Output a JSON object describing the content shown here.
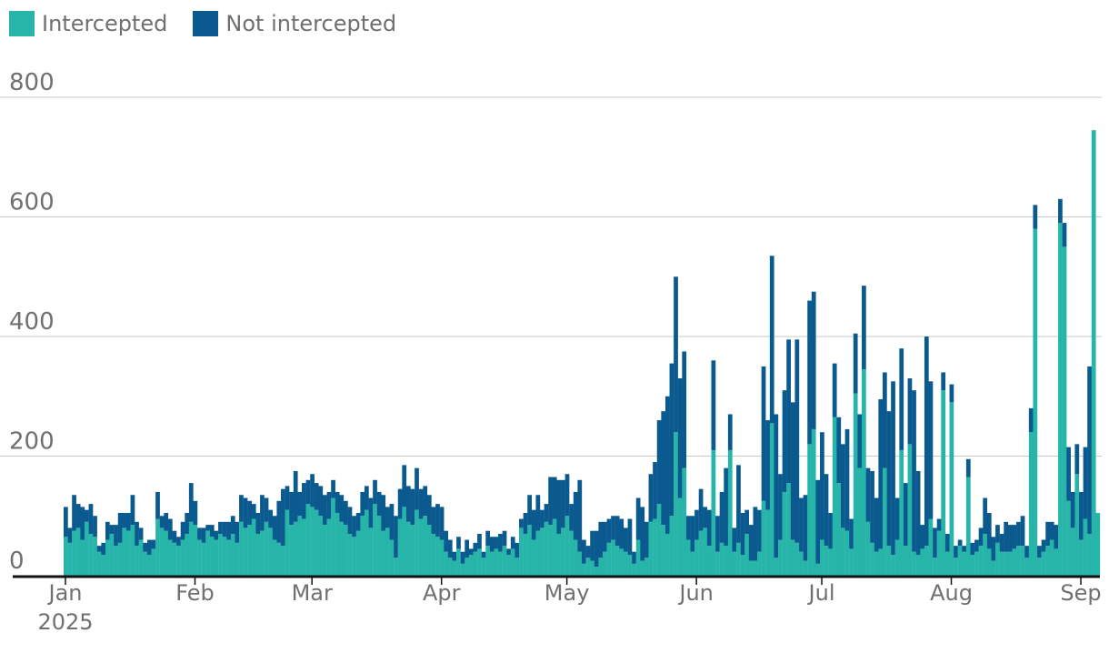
{
  "legend": {
    "intercepted_label": "Intercepted",
    "not_intercepted_label": "Not intercepted"
  },
  "colors": {
    "intercepted": "#26b5a8",
    "not_intercepted": "#0b5a8f",
    "grid": "#c8c8c8",
    "axis": "#121212",
    "text": "#707070"
  },
  "chart_data": {
    "type": "bar",
    "stacked": true,
    "grid": true,
    "legend_position": "top-left",
    "x_start_label": "Jan 1, 2025",
    "y_ticks": [
      "0",
      "200",
      "400",
      "600",
      "800"
    ],
    "ylim": [
      0,
      830
    ],
    "x_ticks": [
      {
        "label": "Jan",
        "sub": "2025",
        "day": 0
      },
      {
        "label": "Feb",
        "sub": "",
        "day": 31
      },
      {
        "label": "Mar",
        "sub": "",
        "day": 59
      },
      {
        "label": "Apr",
        "sub": "",
        "day": 90
      },
      {
        "label": "May",
        "sub": "",
        "day": 120
      },
      {
        "label": "Jun",
        "sub": "",
        "day": 151
      },
      {
        "label": "Jul",
        "sub": "",
        "day": 181
      },
      {
        "label": "Aug",
        "sub": "",
        "day": 212
      },
      {
        "label": "Sep",
        "sub": "",
        "day": 243
      }
    ],
    "series": [
      {
        "name": "Intercepted",
        "values": [
          65,
          55,
          75,
          80,
          60,
          90,
          70,
          65,
          40,
          35,
          60,
          70,
          50,
          55,
          80,
          75,
          85,
          50,
          60,
          40,
          35,
          45,
          95,
          80,
          75,
          60,
          55,
          50,
          60,
          70,
          90,
          85,
          60,
          55,
          75,
          65,
          60,
          70,
          65,
          60,
          70,
          55,
          90,
          80,
          85,
          95,
          70,
          75,
          90,
          80,
          60,
          55,
          50,
          110,
          85,
          90,
          100,
          95,
          120,
          115,
          110,
          100,
          85,
          95,
          130,
          105,
          90,
          85,
          70,
          65,
          75,
          100,
          110,
          80,
          120,
          100,
          75,
          80,
          60,
          30,
          95,
          115,
          90,
          85,
          110,
          95,
          100,
          85,
          70,
          65,
          60,
          40,
          30,
          25,
          45,
          20,
          30,
          35,
          40,
          45,
          30,
          50,
          40,
          45,
          40,
          50,
          35,
          45,
          30,
          80,
          70,
          85,
          60,
          75,
          80,
          90,
          85,
          95,
          70,
          80,
          100,
          75,
          60,
          40,
          20,
          30,
          25,
          15,
          30,
          40,
          55,
          60,
          50,
          45,
          40,
          35,
          20,
          60,
          25,
          30,
          90,
          95,
          120,
          85,
          70,
          100,
          240,
          130,
          180,
          60,
          40,
          60,
          75,
          80,
          50,
          210,
          40,
          55,
          50,
          210,
          40,
          55,
          35,
          70,
          25,
          25,
          40,
          125,
          110,
          255,
          30,
          60,
          140,
          155,
          60,
          55,
          40,
          25,
          220,
          245,
          20,
          60,
          50,
          45,
          265,
          155,
          80,
          75,
          45,
          305,
          180,
          345,
          90,
          55,
          40,
          45,
          180,
          50,
          35,
          60,
          210,
          50,
          220,
          40,
          35,
          45,
          50,
          95,
          30,
          75,
          310,
          40,
          290,
          30,
          50,
          40,
          165,
          35,
          40,
          50,
          70,
          45,
          25,
          55,
          40,
          40,
          40,
          45,
          50,
          50,
          30,
          240,
          580,
          30,
          40,
          50,
          60,
          45,
          590,
          550,
          125,
          80,
          170,
          60,
          95,
          70,
          745,
          105
        ]
      },
      {
        "name": "Not intercepted",
        "values": [
          50,
          25,
          60,
          40,
          55,
          20,
          50,
          35,
          10,
          20,
          30,
          15,
          35,
          50,
          25,
          30,
          50,
          40,
          20,
          15,
          25,
          15,
          45,
          20,
          30,
          35,
          20,
          15,
          30,
          35,
          65,
          40,
          20,
          25,
          10,
          20,
          15,
          20,
          25,
          30,
          30,
          35,
          45,
          50,
          40,
          25,
          35,
          60,
          40,
          30,
          40,
          70,
          95,
          40,
          55,
          85,
          40,
          60,
          40,
          55,
          45,
          50,
          50,
          45,
          30,
          35,
          45,
          40,
          45,
          35,
          30,
          40,
          40,
          50,
          40,
          40,
          60,
          35,
          60,
          70,
          50,
          70,
          60,
          60,
          70,
          50,
          50,
          50,
          45,
          55,
          55,
          35,
          30,
          15,
          20,
          20,
          30,
          10,
          15,
          25,
          10,
          25,
          25,
          20,
          30,
          25,
          10,
          20,
          25,
          15,
          35,
          50,
          50,
          60,
          30,
          30,
          80,
          70,
          90,
          80,
          70,
          45,
          80,
          120,
          40,
          20,
          50,
          60,
          60,
          50,
          40,
          40,
          50,
          50,
          40,
          60,
          20,
          70,
          90,
          60,
          80,
          95,
          140,
          190,
          230,
          255,
          260,
          200,
          195,
          40,
          60,
          50,
          70,
          35,
          60,
          150,
          60,
          85,
          130,
          60,
          40,
          130,
          70,
          40,
          60,
          90,
          70,
          225,
          150,
          280,
          240,
          110,
          170,
          240,
          230,
          340,
          90,
          110,
          240,
          230,
          140,
          180,
          120,
          60,
          90,
          110,
          140,
          170,
          50,
          100,
          90,
          140,
          90,
          120,
          90,
          250,
          160,
          225,
          290,
          70,
          170,
          105,
          110,
          270,
          140,
          40,
          350,
          230,
          50,
          20,
          30,
          30,
          30,
          20,
          10,
          10,
          30,
          20,
          20,
          30,
          60,
          60,
          40,
          30,
          30,
          50,
          45,
          40,
          40,
          50,
          20,
          40,
          40,
          20,
          20,
          40,
          30,
          40,
          40,
          40,
          90,
          60,
          50,
          80,
          120,
          280
        ]
      }
    ]
  }
}
